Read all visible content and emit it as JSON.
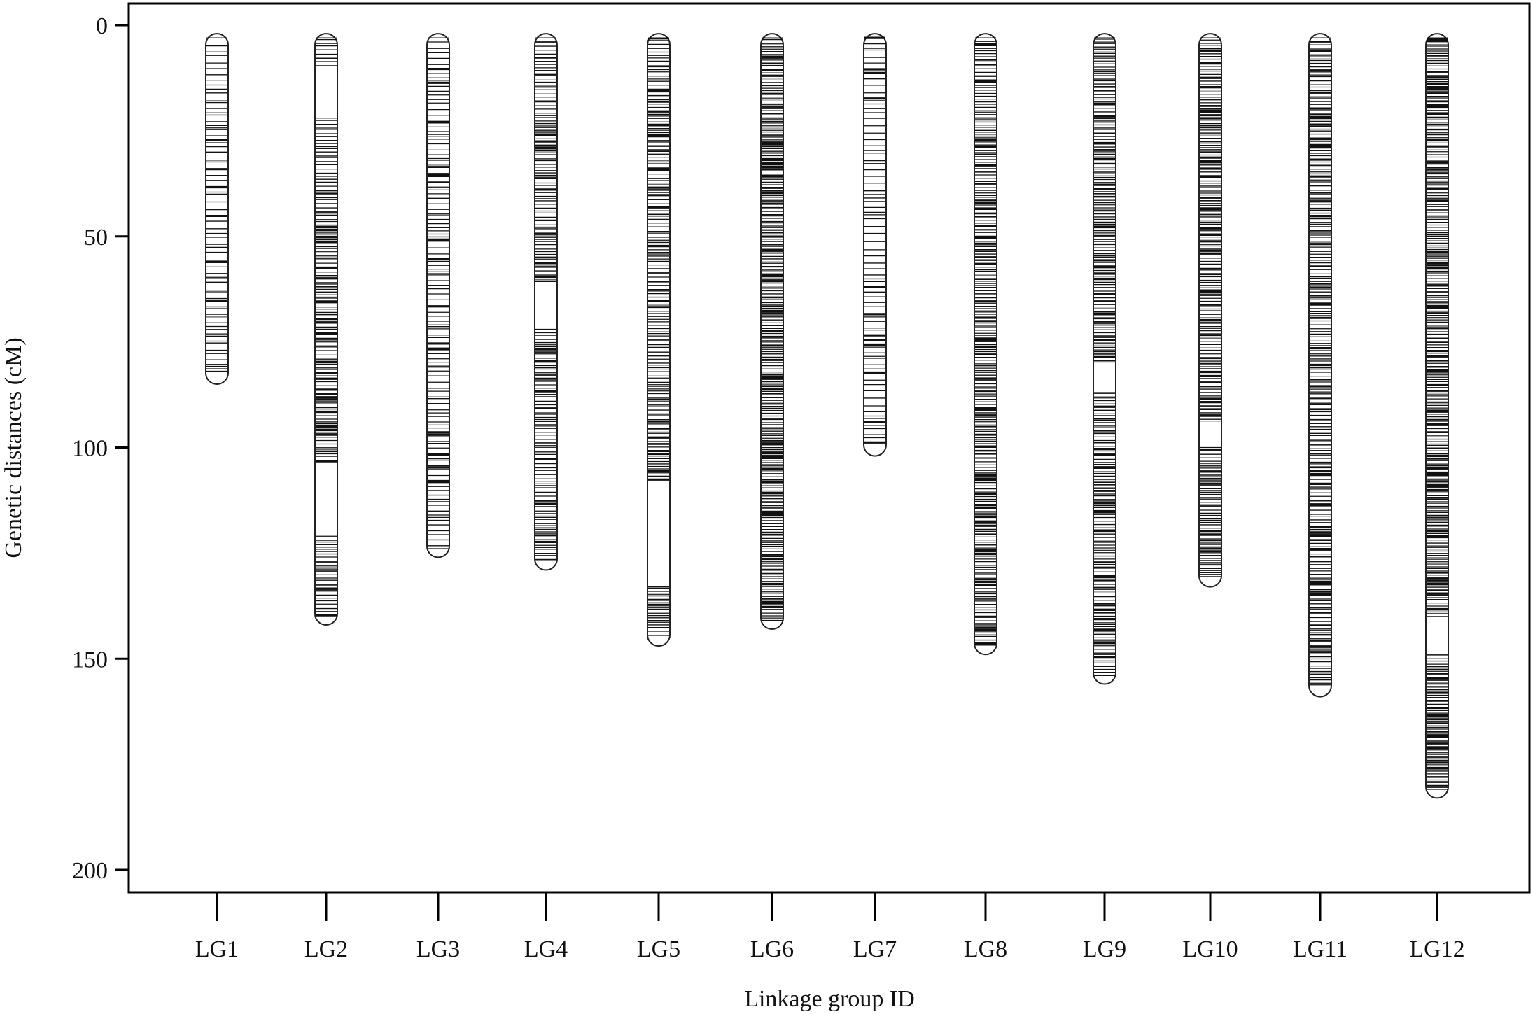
{
  "chart_data": {
    "type": "genetic-linkage-map",
    "title": "",
    "xlabel": "Linkage group ID",
    "ylabel": "Genetic distances (cM)",
    "ylim": [
      0,
      200
    ],
    "y_inverted": true,
    "y_ticks": [
      0,
      50,
      100,
      150,
      200
    ],
    "grid": false,
    "legend": "none",
    "colors": {
      "bar_outline": "#222222",
      "marker": "#111111",
      "axis": "#000000",
      "background": "#ffffff"
    },
    "categories": [
      "LG1",
      "LG2",
      "LG3",
      "LG4",
      "LG5",
      "LG6",
      "LG7",
      "LG8",
      "LG9",
      "LG10",
      "LG11",
      "LG12"
    ],
    "groups": [
      {
        "name": "LG1",
        "length": 85,
        "density": 0.9,
        "gaps": []
      },
      {
        "name": "LG2",
        "length": 142,
        "density": 1.6,
        "gaps": [
          [
            10,
            22
          ],
          [
            104,
            121
          ]
        ]
      },
      {
        "name": "LG3",
        "length": 126,
        "density": 1.1,
        "gaps": []
      },
      {
        "name": "LG4",
        "length": 129,
        "density": 1.6,
        "gaps": [
          [
            61,
            72
          ]
        ]
      },
      {
        "name": "LG5",
        "length": 147,
        "density": 1.6,
        "gaps": [
          [
            108,
            133
          ]
        ]
      },
      {
        "name": "LG6",
        "length": 143,
        "density": 2.3,
        "gaps": []
      },
      {
        "name": "LG7",
        "length": 102,
        "density": 0.9,
        "gaps": []
      },
      {
        "name": "LG8",
        "length": 149,
        "density": 2.0,
        "gaps": []
      },
      {
        "name": "LG9",
        "length": 156,
        "density": 2.0,
        "gaps": [
          [
            80,
            87
          ]
        ]
      },
      {
        "name": "LG10",
        "length": 133,
        "density": 2.0,
        "gaps": [
          [
            94,
            100
          ]
        ]
      },
      {
        "name": "LG11",
        "length": 159,
        "density": 1.7,
        "gaps": []
      },
      {
        "name": "LG12",
        "length": 183,
        "density": 2.3,
        "gaps": [
          [
            140,
            149
          ]
        ]
      }
    ]
  }
}
